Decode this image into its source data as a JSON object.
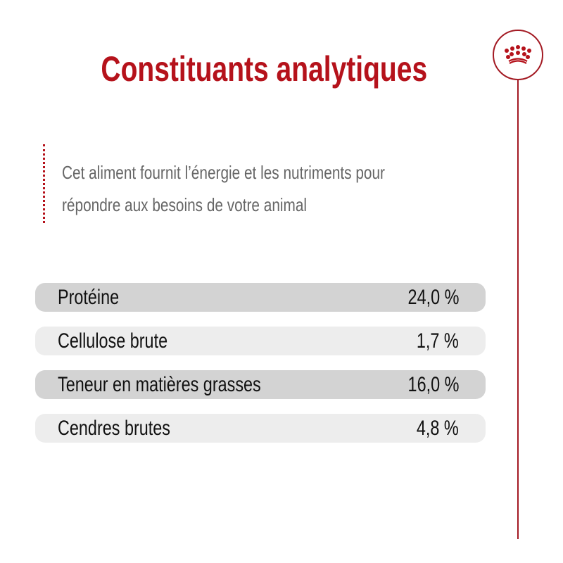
{
  "title": "Constituants analytiques",
  "intro": {
    "line1": "Cet aliment fournit l’énergie et les nutriments pour",
    "line2": "répondre aux besoins de votre animal"
  },
  "rows": [
    {
      "label": "Protéine",
      "value": "24,0 %"
    },
    {
      "label": "Cellulose brute",
      "value": "1,7 %"
    },
    {
      "label": "Teneur en matières grasses",
      "value": "16,0 %"
    },
    {
      "label": "Cendres brutes",
      "value": "4,8 %"
    }
  ],
  "colors": {
    "accent": "#b5121b",
    "row_dark": "#d3d3d3",
    "row_light": "#ededed"
  },
  "icons": {
    "logo": "crown-icon"
  }
}
